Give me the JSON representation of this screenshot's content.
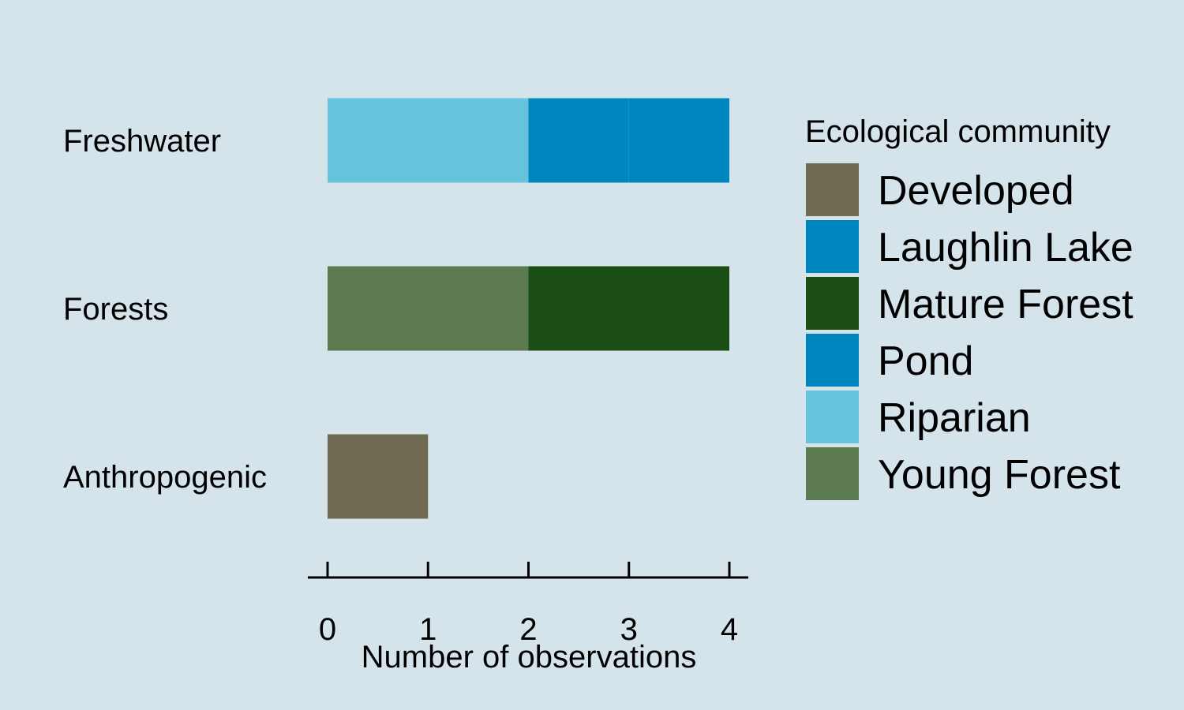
{
  "chart_data": {
    "type": "bar",
    "orientation": "horizontal",
    "stacked": true,
    "categories": [
      "Freshwater",
      "Forests",
      "Anthropogenic"
    ],
    "segments": [
      {
        "category": "Freshwater",
        "community": "Riparian",
        "value": 2
      },
      {
        "category": "Freshwater",
        "community": "Laughlin Lake",
        "value": 1
      },
      {
        "category": "Freshwater",
        "community": "Pond",
        "value": 1
      },
      {
        "category": "Forests",
        "community": "Young Forest",
        "value": 2
      },
      {
        "category": "Forests",
        "community": "Mature Forest",
        "value": 2
      },
      {
        "category": "Anthropogenic",
        "community": "Developed",
        "value": 1
      }
    ],
    "xlabel": "Number of observations",
    "ylabel": "",
    "xlim": [
      0,
      4
    ],
    "xticks": [
      0,
      1,
      2,
      3,
      4
    ],
    "grid": false,
    "legend": {
      "title": "Ecological community",
      "position": "right",
      "items": [
        {
          "label": "Developed",
          "color": "#6f6a51"
        },
        {
          "label": "Laughlin Lake",
          "color": "#0086bf"
        },
        {
          "label": "Mature Forest",
          "color": "#1a4e14"
        },
        {
          "label": "Pond",
          "color": "#0086bf"
        },
        {
          "label": "Riparian",
          "color": "#66c3de"
        },
        {
          "label": "Young Forest",
          "color": "#5b7a50"
        }
      ]
    },
    "background_color": "#d5e4eb"
  }
}
